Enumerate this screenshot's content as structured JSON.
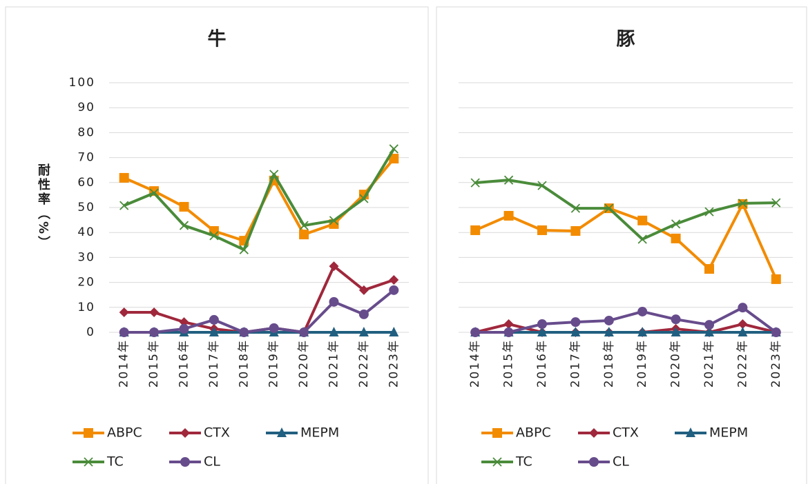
{
  "chart_data": [
    {
      "type": "line",
      "title": "牛",
      "ylabel": "耐性率（%）",
      "categories": [
        "2014年",
        "2015年",
        "2016年",
        "2017年",
        "2018年",
        "2019年",
        "2020年",
        "2021年",
        "2022年",
        "2023年"
      ],
      "series": [
        {
          "name": "ABPC",
          "color": "#f28b00",
          "marker": "square",
          "values": [
            61.9,
            56.6,
            50.3,
            40.6,
            36.7,
            60.8,
            39.2,
            43.4,
            55.2,
            69.6
          ]
        },
        {
          "name": "CTX",
          "color": "#a0283c",
          "marker": "diamond",
          "values": [
            8,
            8,
            4.1,
            1.4,
            0,
            1.7,
            0,
            26.5,
            16.9,
            21
          ]
        },
        {
          "name": "MEPM",
          "color": "#215f80",
          "marker": "triangle",
          "values": [
            0,
            0,
            0,
            0,
            0,
            0,
            0,
            0,
            0,
            0
          ]
        },
        {
          "name": "TC",
          "color": "#4a8b3a",
          "marker": "x",
          "values": [
            50.8,
            55.8,
            42.8,
            38.7,
            33.1,
            63.3,
            42.8,
            44.8,
            53.6,
            73.5
          ]
        },
        {
          "name": "CL",
          "color": "#674c8c",
          "marker": "circle",
          "values": [
            0,
            0,
            1.4,
            5,
            0,
            1.7,
            0,
            12.2,
            7.2,
            16.9
          ]
        }
      ],
      "ylim": [
        0,
        100
      ],
      "yticks": [
        0,
        10,
        20,
        30,
        40,
        50,
        60,
        70,
        80,
        90,
        100
      ],
      "grid": true,
      "show_ytick_labels": true,
      "legend": "bottom"
    },
    {
      "type": "line",
      "title": "豚",
      "categories": [
        "2014年",
        "2015年",
        "2016年",
        "2017年",
        "2018年",
        "2019年",
        "2020年",
        "2021年",
        "2022年",
        "2023年"
      ],
      "series": [
        {
          "name": "ABPC",
          "color": "#f28b00",
          "marker": "square",
          "values": [
            40.9,
            46.7,
            40.9,
            40.6,
            49.7,
            44.8,
            37.6,
            25.4,
            51.4,
            21.3
          ]
        },
        {
          "name": "CTX",
          "color": "#a0283c",
          "marker": "diamond",
          "values": [
            0,
            3.3,
            0,
            0,
            0,
            0,
            1.4,
            0,
            3.3,
            0
          ]
        },
        {
          "name": "MEPM",
          "color": "#215f80",
          "marker": "triangle",
          "values": [
            0,
            0,
            0,
            0,
            0,
            0,
            0,
            0,
            0,
            0
          ]
        },
        {
          "name": "TC",
          "color": "#4a8b3a",
          "marker": "x",
          "values": [
            59.9,
            61,
            58.8,
            49.7,
            49.7,
            37.3,
            43.4,
            48.3,
            51.7,
            51.9
          ]
        },
        {
          "name": "CL",
          "color": "#674c8c",
          "marker": "circle",
          "values": [
            0,
            0,
            3.3,
            4.1,
            4.7,
            8.3,
            5.2,
            3,
            9.9,
            0
          ]
        }
      ],
      "ylim": [
        0,
        100
      ],
      "yticks": [
        0,
        10,
        20,
        30,
        40,
        50,
        60,
        70,
        80,
        90,
        100
      ],
      "grid": true,
      "show_ytick_labels": false,
      "legend": "bottom"
    }
  ]
}
